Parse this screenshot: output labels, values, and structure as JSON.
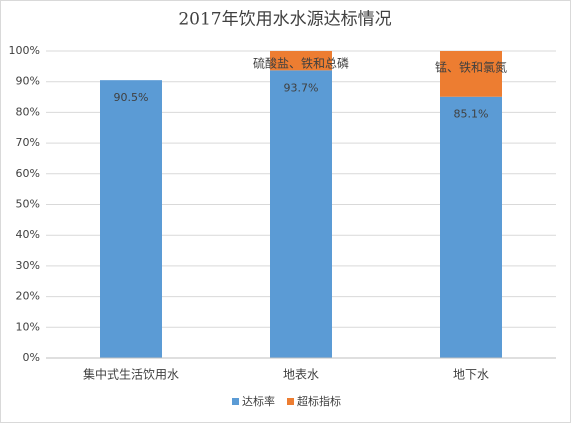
{
  "chart_data": {
    "type": "stacked-bar",
    "title": "2017年饮用水水源达标情况",
    "categories": [
      "集中式生活饮用水",
      "地表水",
      "地下水"
    ],
    "series": [
      {
        "name": "达标率",
        "color": "#5b9bd5",
        "values": [
          90.5,
          93.7,
          85.1
        ],
        "value_labels": [
          "90.5%",
          "93.7%",
          "85.1%"
        ]
      },
      {
        "name": "超标指标",
        "color": "#ed7d31",
        "values": [
          null,
          6.3,
          14.9
        ]
      }
    ],
    "annotations": [
      {
        "category": "地表水",
        "text": "硫酸盐、铁和总磷"
      },
      {
        "category": "地下水",
        "text": "锰、铁和氯氮"
      }
    ],
    "ylim": [
      0,
      100
    ],
    "yticks": [
      {
        "value": 0,
        "label": "0%"
      },
      {
        "value": 10,
        "label": "10%"
      },
      {
        "value": 20,
        "label": "20%"
      },
      {
        "value": 30,
        "label": "30%"
      },
      {
        "value": 40,
        "label": "40%"
      },
      {
        "value": 50,
        "label": "50%"
      },
      {
        "value": 60,
        "label": "60%"
      },
      {
        "value": 70,
        "label": "70%"
      },
      {
        "value": 80,
        "label": "80%"
      },
      {
        "value": 90,
        "label": "90%"
      },
      {
        "value": 100,
        "label": "100%"
      }
    ],
    "grid": true,
    "legend": "bottom"
  }
}
